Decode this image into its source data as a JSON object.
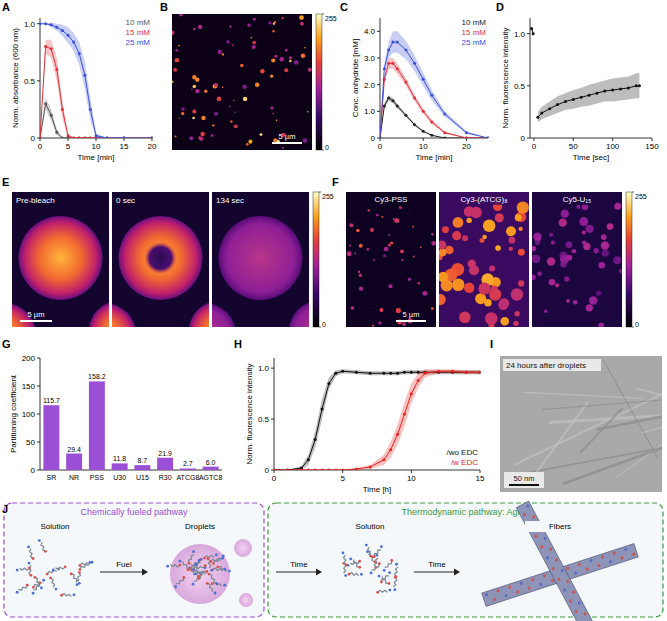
{
  "panel_labels": [
    "A",
    "B",
    "C",
    "D",
    "E",
    "F",
    "G",
    "H",
    "I",
    "J"
  ],
  "chart_data": [
    {
      "type": "line",
      "x_label": "Time [min]",
      "y_label": "Norm. absorbance (600 nm)",
      "marker": "circle",
      "legend": "top-right",
      "x": [
        0,
        1,
        2,
        3,
        4,
        5,
        6,
        7,
        8,
        9,
        10,
        12,
        15,
        20
      ],
      "xlim": [
        0,
        20
      ],
      "xticks": [
        0,
        5,
        10,
        15,
        20
      ],
      "ylim": [
        0,
        1.05
      ],
      "yticks": [
        0,
        0.5,
        {
          "value": 1,
          "label": "1.0"
        }
      ],
      "series": [
        {
          "name": "10 mM",
          "color": "#555555",
          "values": [
            0,
            0.3,
            0.2,
            0.05,
            0,
            0,
            0,
            0,
            0,
            0,
            0,
            0,
            0,
            0
          ],
          "error": [
            0,
            0.05,
            0.05,
            0.03,
            0,
            0,
            0,
            0,
            0,
            0,
            0,
            0,
            0,
            0
          ]
        },
        {
          "name": "15 mM",
          "color": "#e0303a",
          "values": [
            0,
            0.8,
            0.78,
            0.6,
            0.25,
            0.02,
            0,
            0,
            0,
            0,
            0,
            0,
            0,
            0
          ],
          "error": [
            0,
            0.06,
            0.08,
            0.1,
            0.08,
            0.02,
            0,
            0,
            0,
            0,
            0,
            0,
            0,
            0
          ]
        },
        {
          "name": "25 mM",
          "color": "#3b4fd8",
          "values": [
            1.0,
            1.0,
            0.99,
            0.97,
            0.94,
            0.9,
            0.84,
            0.74,
            0.55,
            0.25,
            0.02,
            0,
            0,
            0
          ],
          "error": [
            0,
            0,
            0.02,
            0.03,
            0.05,
            0.07,
            0.08,
            0.1,
            0.12,
            0.1,
            0.02,
            0,
            0,
            0
          ]
        }
      ]
    },
    {
      "type": "line",
      "x_label": "Time [min]",
      "y_label": "Conc. anhydride [mM]",
      "marker": "circle",
      "legend": "top-right",
      "x": [
        0,
        1,
        2,
        3,
        4,
        6,
        8,
        10,
        12,
        15,
        20,
        25
      ],
      "xlim": [
        0,
        25
      ],
      "xticks": [
        0,
        10,
        20
      ],
      "ylim": [
        0,
        4.5
      ],
      "yticks": [
        0,
        {
          "value": 1,
          "label": "1.0"
        },
        {
          "value": 2,
          "label": "2.0"
        },
        {
          "value": 3,
          "label": "3.0"
        },
        {
          "value": 4,
          "label": "4.0"
        }
      ],
      "series": [
        {
          "name": "10 mM",
          "color": "#222222",
          "values": [
            0,
            1.2,
            1.5,
            1.4,
            1.2,
            0.85,
            0.5,
            0.25,
            0.1,
            0,
            0,
            0
          ],
          "error": [
            0,
            0.1,
            0.1,
            0.1,
            0.08,
            0.06,
            0.05,
            0.03,
            0.02,
            0,
            0,
            0
          ]
        },
        {
          "name": "15 mM",
          "color": "#e0303a",
          "values": [
            0,
            2.2,
            2.8,
            2.8,
            2.6,
            2.1,
            1.5,
            1.0,
            0.6,
            0.2,
            0,
            0
          ],
          "error": [
            0,
            0.15,
            0.2,
            0.2,
            0.2,
            0.15,
            0.12,
            0.1,
            0.08,
            0.05,
            0,
            0
          ]
        },
        {
          "name": "25 mM",
          "color": "#3b4fd8",
          "values": [
            0,
            2.6,
            3.3,
            3.6,
            3.6,
            3.3,
            2.8,
            2.2,
            1.6,
            0.9,
            0.2,
            0
          ],
          "error": [
            0,
            0.2,
            0.3,
            0.4,
            0.4,
            0.35,
            0.3,
            0.25,
            0.2,
            0.1,
            0.05,
            0
          ]
        }
      ]
    },
    {
      "type": "line",
      "x_label": "Time [sec]",
      "y_label": "Norm. fluorescence intensity",
      "marker": "circle",
      "x": [
        -3,
        -1,
        0,
        5,
        10,
        20,
        30,
        40,
        50,
        60,
        70,
        80,
        90,
        100,
        110,
        120,
        130,
        134
      ],
      "xlim": [
        -5,
        150
      ],
      "xticks": [
        0,
        50,
        100,
        150
      ],
      "ylim": [
        0,
        1.15
      ],
      "yticks": [
        0,
        0.5,
        {
          "value": 1,
          "label": "1.0"
        }
      ],
      "series": [
        {
          "color": "#111111",
          "values": [
            1.05,
            1.0,
            null,
            0.2,
            0.24,
            0.28,
            0.32,
            0.35,
            0.37,
            0.39,
            0.41,
            0.43,
            0.45,
            0.46,
            0.47,
            0.48,
            0.5,
            0.5
          ],
          "error": [
            0.02,
            0.02,
            null,
            0.05,
            0.06,
            0.07,
            0.08,
            0.08,
            0.09,
            0.09,
            0.1,
            0.1,
            0.1,
            0.11,
            0.11,
            0.11,
            0.12,
            0.12
          ]
        }
      ]
    },
    {
      "type": "bar",
      "y_label": "Partitioning coefficient",
      "categories": [
        "SR",
        "NR",
        "PSS",
        "U30",
        "U15",
        "R30",
        "ATCG8",
        "AGTC8"
      ],
      "values": [
        115.7,
        29.4,
        158.2,
        11.8,
        8.7,
        21.9,
        2.7,
        6.0
      ],
      "value_labels": [
        "115.7",
        "29.4",
        "158.2",
        "11.8",
        "8.7",
        "21.9",
        "2.7",
        "6.0"
      ],
      "color": "#9b4fd6",
      "data_labels": true,
      "ylim": [
        0,
        200
      ],
      "yticks": [
        0,
        50,
        100,
        150,
        200
      ]
    },
    {
      "type": "line",
      "x_label": "Time [h]",
      "y_label": "Norm. fluorescence intensity",
      "marker": "circle",
      "legend": "bottom-right",
      "x": [
        0,
        1,
        2,
        2.5,
        3,
        3.5,
        4,
        4.5,
        5,
        6,
        7,
        8,
        8.5,
        9,
        9.5,
        10,
        10.5,
        11,
        12,
        13,
        14,
        15
      ],
      "xlim": [
        0,
        15
      ],
      "xticks": [
        0,
        5,
        10,
        15
      ],
      "ylim": [
        0,
        1.1
      ],
      "yticks": [
        0,
        0.5,
        {
          "value": 1,
          "label": "1.0"
        }
      ],
      "series": [
        {
          "name": "/wo EDC",
          "color": "#111111",
          "values": [
            0,
            0,
            0.02,
            0.1,
            0.3,
            0.6,
            0.85,
            0.95,
            0.97,
            0.96,
            0.95,
            0.95,
            0.95,
            0.95,
            0.96,
            0.96,
            0.96,
            0.96,
            0.96,
            0.96,
            0.96,
            0.96
          ],
          "error": [
            0,
            0,
            0.02,
            0.05,
            0.08,
            0.1,
            0.06,
            0.03,
            0.02,
            0.02,
            0.02,
            0.02,
            0.02,
            0.02,
            0.02,
            0.02,
            0.02,
            0.02,
            0.02,
            0.02,
            0.02,
            0.02
          ]
        },
        {
          "name": "/w EDC",
          "color": "#e8221c",
          "values": [
            0,
            0,
            0,
            0,
            0,
            0,
            0,
            0,
            0,
            0.01,
            0.03,
            0.1,
            0.2,
            0.35,
            0.55,
            0.75,
            0.88,
            0.95,
            0.97,
            0.97,
            0.96,
            0.96
          ],
          "error": [
            0,
            0,
            0,
            0,
            0,
            0,
            0,
            0,
            0,
            0.01,
            0.02,
            0.05,
            0.08,
            0.1,
            0.12,
            0.1,
            0.07,
            0.04,
            0.02,
            0.02,
            0.02,
            0.02
          ]
        }
      ]
    }
  ],
  "images": {
    "B": {
      "scale_bar": "5 µm",
      "colorbar": {
        "range": [
          0,
          255
        ],
        "ticks": [
          0,
          255
        ]
      }
    },
    "E": {
      "frames": [
        "Pre-bleach",
        "0 sec",
        "134 sec"
      ],
      "scale_bar": "5 µm",
      "colorbar": {
        "range": [
          0,
          255
        ],
        "ticks": [
          0,
          255
        ]
      }
    },
    "F": {
      "frames": [
        "Cy3-PSS",
        "Cy3-(ATCG)₈",
        "Cy5-U₁₅"
      ],
      "scale_bar": "5 µm",
      "colorbar": {
        "range": [
          0,
          255
        ],
        "ticks": [
          0,
          255
        ]
      }
    },
    "I": {
      "caption": "24 hours after droplets",
      "scale_bar": "50 nm"
    }
  },
  "scheme": {
    "sections": [
      {
        "title": "Chemically fueled pathway",
        "stages": [
          "Solution",
          "Droplets"
        ],
        "arrows": [
          "Fuel"
        ]
      },
      {
        "title": "Thermodynamic pathway: Aging",
        "stages": [
          "Solution",
          "Fibers"
        ],
        "arrows": [
          "Time",
          "Time"
        ]
      }
    ]
  }
}
